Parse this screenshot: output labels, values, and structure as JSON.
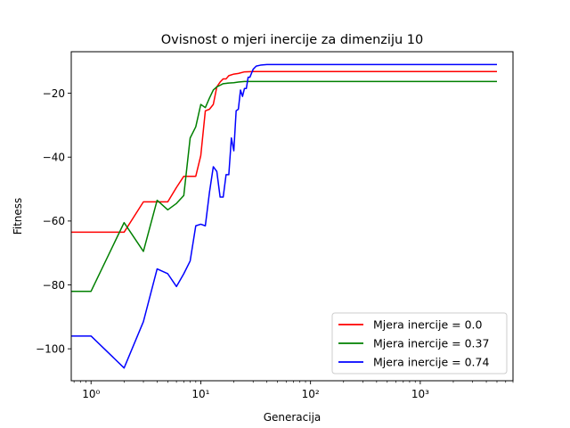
{
  "chart_data": {
    "type": "line",
    "title": "Ovisnost o mjeri inercije za dimenziju 10",
    "xlabel": "Generacija",
    "ylabel": "Fitness",
    "xscale": "log",
    "xlim": [
      0.66,
      7000
    ],
    "ylim": [
      -110,
      -7
    ],
    "xticks": [
      {
        "value": 1,
        "label": "10⁰"
      },
      {
        "value": 10,
        "label": "10¹"
      },
      {
        "value": 100,
        "label": "10²"
      },
      {
        "value": 1000,
        "label": "10³"
      }
    ],
    "yticks": [
      {
        "value": -100,
        "label": "−100"
      },
      {
        "value": -80,
        "label": "−80"
      },
      {
        "value": -60,
        "label": "−60"
      },
      {
        "value": -40,
        "label": "−40"
      },
      {
        "value": -20,
        "label": "−20"
      }
    ],
    "grid": false,
    "legend_position": "lower-right",
    "series": [
      {
        "name": "Mjera inercije = 0.0",
        "color": "#ff0000",
        "x": [
          0.66,
          1,
          2,
          3,
          4,
          5,
          6,
          7,
          8,
          9,
          10,
          11,
          12,
          13,
          14,
          15,
          16,
          17,
          18,
          20,
          22,
          25,
          30,
          40,
          60,
          100,
          1000,
          5000
        ],
        "y": [
          -63.5,
          -63.5,
          -63.5,
          -54,
          -54,
          -54,
          -49.5,
          -46,
          -46,
          -46,
          -39.5,
          -25.5,
          -25,
          -23.5,
          -18,
          -16.5,
          -15.5,
          -15.5,
          -14.5,
          -14,
          -13.8,
          -13.3,
          -13.2,
          -13.2,
          -13.2,
          -13.2,
          -13.2,
          -13.2
        ]
      },
      {
        "name": "Mjera inercije = 0.37",
        "color": "#008000",
        "x": [
          0.66,
          1,
          2,
          3,
          4,
          5,
          6,
          7,
          8,
          9,
          10,
          11,
          12,
          13,
          14,
          15,
          16,
          18,
          20,
          22,
          25,
          30,
          40,
          100,
          1000,
          5000
        ],
        "y": [
          -82,
          -82,
          -60.5,
          -69.5,
          -53.5,
          -56.5,
          -54.5,
          -52,
          -34,
          -30.5,
          -23.5,
          -24.5,
          -21.5,
          -19,
          -18,
          -17.5,
          -17,
          -16.8,
          -16.7,
          -16.5,
          -16.3,
          -16.3,
          -16.3,
          -16.3,
          -16.3,
          -16.3
        ]
      },
      {
        "name": "Mjera inercije = 0.74",
        "color": "#0000ff",
        "x": [
          0.66,
          1,
          2,
          3,
          4,
          5,
          6,
          7,
          8,
          9,
          10,
          11,
          12,
          13,
          14,
          15,
          16,
          17,
          18,
          19,
          20,
          21,
          22,
          23,
          24,
          25,
          26,
          27,
          28,
          30,
          32,
          35,
          40,
          60,
          100,
          1000,
          5000
        ],
        "y": [
          -96,
          -96,
          -106,
          -91.5,
          -75,
          -76.5,
          -80.5,
          -76.5,
          -72.5,
          -61.5,
          -61,
          -61.5,
          -51,
          -43,
          -44.5,
          -52.5,
          -52.5,
          -45.5,
          -45.5,
          -34,
          -38,
          -25.5,
          -25,
          -19,
          -21,
          -18.5,
          -18.5,
          -15,
          -15,
          -12.5,
          -11.5,
          -11.2,
          -11,
          -11,
          -11,
          -11,
          -11
        ]
      }
    ]
  }
}
